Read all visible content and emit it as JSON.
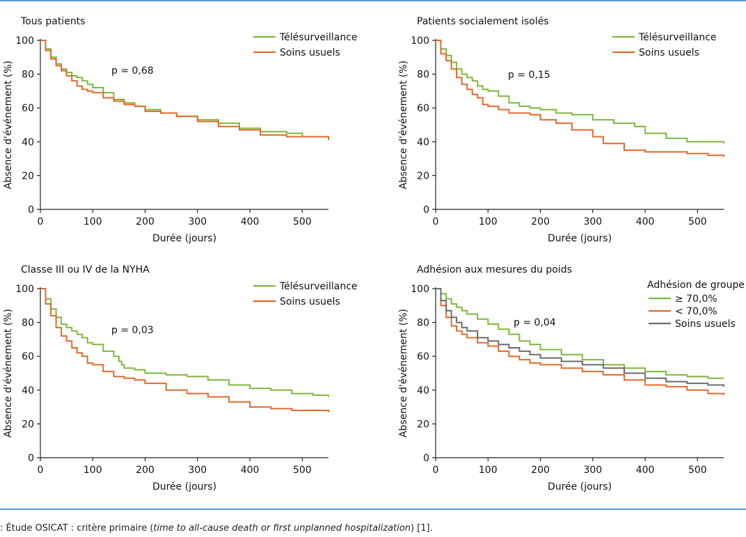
{
  "caption": {
    "prefix": ": Étude OSICAT : critère primaire (",
    "italic": "time to all-cause death or first unplanned hospitalization",
    "suffix": ") [1]."
  },
  "colors": {
    "telesurveillance": "#7db83a",
    "soins_usuels": "#e2692a",
    "ge70": "#7db83a",
    "lt70": "#e2692a",
    "soins_usuels_gray": "#6b6b6b"
  },
  "chart_data": [
    {
      "type": "line",
      "title": "Tous patients",
      "xlabel": "Durée (jours)",
      "ylabel": "Absence d'événement (%)",
      "xlim": [
        0,
        550
      ],
      "ylim": [
        0,
        100
      ],
      "xticks": [
        0,
        100,
        200,
        300,
        400,
        500
      ],
      "yticks": [
        0,
        20,
        40,
        60,
        80,
        100
      ],
      "annotation": "p = 0,68",
      "legend_title": "",
      "series": [
        {
          "name": "Télésurveillance",
          "color": "#7db83a",
          "x": [
            0,
            10,
            20,
            30,
            40,
            50,
            60,
            70,
            80,
            90,
            100,
            120,
            140,
            160,
            180,
            200,
            230,
            260,
            300,
            340,
            380,
            420,
            470,
            500,
            550
          ],
          "y": [
            100,
            95,
            90,
            86,
            83,
            81,
            79,
            78,
            76,
            74,
            72,
            69,
            65,
            63,
            61,
            59,
            57,
            55,
            53,
            51,
            48,
            46,
            45,
            43,
            42
          ]
        },
        {
          "name": "Soins usuels",
          "color": "#e2692a",
          "x": [
            0,
            10,
            20,
            30,
            40,
            50,
            60,
            70,
            80,
            90,
            100,
            120,
            140,
            160,
            180,
            200,
            230,
            260,
            300,
            340,
            380,
            420,
            470,
            500,
            550
          ],
          "y": [
            100,
            94,
            89,
            85,
            82,
            79,
            76,
            73,
            71,
            70,
            69,
            66,
            64,
            62,
            61,
            58,
            57,
            55,
            52,
            49,
            47,
            44,
            43,
            43,
            41
          ]
        }
      ]
    },
    {
      "type": "line",
      "title": "Patients socialement isolés",
      "xlabel": "Durée (jours)",
      "ylabel": "Absence d'événement (%)",
      "xlim": [
        0,
        550
      ],
      "ylim": [
        0,
        100
      ],
      "xticks": [
        0,
        100,
        200,
        300,
        400,
        500
      ],
      "yticks": [
        0,
        20,
        40,
        60,
        80,
        100
      ],
      "annotation": "p = 0,15",
      "legend_title": "",
      "series": [
        {
          "name": "Télésurveillance",
          "color": "#7db83a",
          "x": [
            0,
            10,
            20,
            30,
            40,
            50,
            60,
            70,
            80,
            90,
            100,
            120,
            140,
            160,
            180,
            200,
            230,
            260,
            300,
            340,
            380,
            400,
            440,
            480,
            520,
            550
          ],
          "y": [
            100,
            95,
            91,
            87,
            83,
            80,
            78,
            76,
            73,
            71,
            70,
            67,
            63,
            61,
            60,
            59,
            57,
            56,
            53,
            51,
            49,
            45,
            42,
            40,
            40,
            39
          ]
        },
        {
          "name": "Soins usuels",
          "color": "#e2692a",
          "x": [
            0,
            10,
            20,
            30,
            40,
            50,
            60,
            70,
            80,
            90,
            100,
            120,
            140,
            160,
            180,
            200,
            230,
            260,
            300,
            320,
            340,
            360,
            400,
            440,
            480,
            520,
            550
          ],
          "y": [
            100,
            92,
            88,
            83,
            78,
            74,
            71,
            68,
            66,
            62,
            61,
            59,
            57,
            57,
            56,
            53,
            51,
            47,
            43,
            39,
            39,
            35,
            34,
            34,
            33,
            32,
            31
          ]
        }
      ]
    },
    {
      "type": "line",
      "title": "Classe III ou IV de la NYHA",
      "xlabel": "Durée (jours)",
      "ylabel": "Absence d'événement (%)",
      "xlim": [
        0,
        550
      ],
      "ylim": [
        0,
        100
      ],
      "xticks": [
        0,
        100,
        200,
        300,
        400,
        500
      ],
      "yticks": [
        0,
        20,
        40,
        60,
        80,
        100
      ],
      "annotation": "p = 0,03",
      "legend_title": "",
      "series": [
        {
          "name": "Télésurveillance",
          "color": "#7db83a",
          "x": [
            0,
            10,
            20,
            30,
            40,
            50,
            60,
            70,
            80,
            90,
            100,
            120,
            140,
            150,
            155,
            160,
            180,
            200,
            240,
            280,
            320,
            360,
            400,
            440,
            480,
            520,
            550
          ],
          "y": [
            100,
            94,
            88,
            83,
            79,
            77,
            75,
            73,
            71,
            68,
            67,
            63,
            60,
            57,
            55,
            53,
            52,
            50,
            49,
            48,
            46,
            43,
            41,
            40,
            38,
            37,
            36
          ]
        },
        {
          "name": "Soins usuels",
          "color": "#e2692a",
          "x": [
            0,
            10,
            20,
            30,
            40,
            50,
            60,
            70,
            80,
            90,
            100,
            120,
            140,
            160,
            180,
            200,
            240,
            280,
            320,
            360,
            400,
            440,
            480,
            520,
            550
          ],
          "y": [
            100,
            91,
            84,
            77,
            72,
            69,
            65,
            62,
            60,
            56,
            55,
            51,
            48,
            47,
            46,
            44,
            40,
            38,
            36,
            33,
            30,
            29,
            28,
            28,
            27
          ]
        }
      ]
    },
    {
      "type": "line",
      "title": "Adhésion aux mesures du poids",
      "xlabel": "Durée (jours)",
      "ylabel": "Absence d'événement (%)",
      "xlim": [
        0,
        550
      ],
      "ylim": [
        0,
        100
      ],
      "xticks": [
        0,
        100,
        200,
        300,
        400,
        500
      ],
      "yticks": [
        0,
        20,
        40,
        60,
        80,
        100
      ],
      "annotation": "p = 0,04",
      "legend_title": "Adhésion de groupe",
      "series": [
        {
          "name": "≥ 70,0%",
          "color": "#7db83a",
          "x": [
            0,
            10,
            20,
            30,
            40,
            50,
            60,
            80,
            100,
            120,
            140,
            160,
            180,
            200,
            240,
            280,
            320,
            360,
            400,
            440,
            480,
            520,
            550
          ],
          "y": [
            100,
            97,
            94,
            91,
            89,
            87,
            85,
            82,
            79,
            76,
            73,
            69,
            67,
            64,
            61,
            58,
            55,
            53,
            51,
            49,
            48,
            47,
            47
          ]
        },
        {
          "name": "< 70,0%",
          "color": "#e2692a",
          "x": [
            0,
            10,
            20,
            30,
            40,
            50,
            60,
            80,
            100,
            120,
            140,
            160,
            180,
            200,
            240,
            280,
            320,
            360,
            400,
            440,
            480,
            520,
            550
          ],
          "y": [
            100,
            90,
            83,
            78,
            75,
            73,
            71,
            68,
            66,
            63,
            60,
            58,
            56,
            55,
            53,
            51,
            49,
            46,
            43,
            42,
            40,
            38,
            37
          ]
        },
        {
          "name": "Soins usuels",
          "color": "#6b6b6b",
          "x": [
            0,
            10,
            20,
            30,
            40,
            50,
            60,
            80,
            100,
            120,
            140,
            160,
            180,
            200,
            240,
            280,
            320,
            360,
            400,
            440,
            480,
            520,
            550
          ],
          "y": [
            100,
            93,
            87,
            83,
            80,
            77,
            75,
            71,
            69,
            67,
            65,
            63,
            61,
            59,
            57,
            55,
            53,
            50,
            47,
            45,
            44,
            43,
            42
          ]
        }
      ]
    }
  ]
}
